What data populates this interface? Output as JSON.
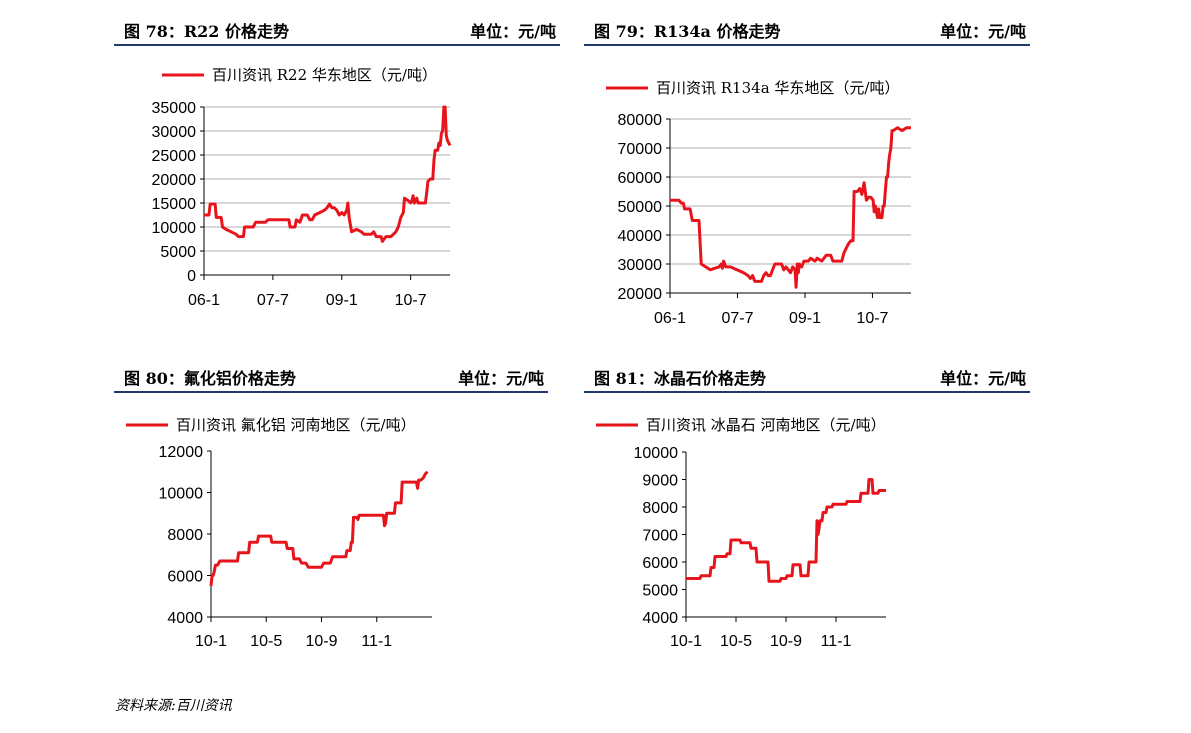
{
  "panels": [
    {
      "title": "图 78：R22 价格走势",
      "unit": "单位：元/吨",
      "chart_data": {
        "type": "line",
        "series": [
          {
            "name": "百川资讯 R22 华东地区（元/吨）",
            "color": "#e8141c"
          }
        ],
        "xlabel": "",
        "ylabel": "",
        "x_ticks": [
          "06-1",
          "07-7",
          "09-1",
          "10-7"
        ],
        "y_ticks": [
          0,
          5000,
          10000,
          15000,
          20000,
          25000,
          30000,
          35000
        ],
        "ylim": [
          0,
          35000
        ],
        "grid": "horizontal",
        "legend": "top",
        "points": [
          [
            0,
            12500
          ],
          [
            0.02,
            12500
          ],
          [
            0.025,
            14800
          ],
          [
            0.045,
            14800
          ],
          [
            0.05,
            12000
          ],
          [
            0.07,
            12000
          ],
          [
            0.075,
            10000
          ],
          [
            0.09,
            9500
          ],
          [
            0.11,
            9000
          ],
          [
            0.13,
            8500
          ],
          [
            0.14,
            8000
          ],
          [
            0.16,
            8000
          ],
          [
            0.165,
            10000
          ],
          [
            0.2,
            10000
          ],
          [
            0.21,
            11000
          ],
          [
            0.25,
            11000
          ],
          [
            0.26,
            11500
          ],
          [
            0.3,
            11500
          ],
          [
            0.32,
            11500
          ],
          [
            0.345,
            11500
          ],
          [
            0.35,
            10000
          ],
          [
            0.37,
            10000
          ],
          [
            0.375,
            11500
          ],
          [
            0.39,
            11000
          ],
          [
            0.4,
            12500
          ],
          [
            0.42,
            12500
          ],
          [
            0.43,
            11500
          ],
          [
            0.44,
            11500
          ],
          [
            0.45,
            12500
          ],
          [
            0.47,
            13000
          ],
          [
            0.49,
            13500
          ],
          [
            0.5,
            14000
          ],
          [
            0.51,
            14800
          ],
          [
            0.52,
            14000
          ],
          [
            0.53,
            14000
          ],
          [
            0.54,
            13500
          ],
          [
            0.55,
            12500
          ],
          [
            0.56,
            13000
          ],
          [
            0.57,
            12500
          ],
          [
            0.58,
            13500
          ],
          [
            0.585,
            15000
          ],
          [
            0.59,
            12000
          ],
          [
            0.6,
            9000
          ],
          [
            0.62,
            9500
          ],
          [
            0.64,
            9000
          ],
          [
            0.65,
            8500
          ],
          [
            0.68,
            8500
          ],
          [
            0.69,
            9000
          ],
          [
            0.7,
            8000
          ],
          [
            0.72,
            8000
          ],
          [
            0.725,
            7000
          ],
          [
            0.74,
            8000
          ],
          [
            0.76,
            8000
          ],
          [
            0.77,
            8500
          ],
          [
            0.78,
            9000
          ],
          [
            0.79,
            10000
          ],
          [
            0.8,
            12000
          ],
          [
            0.81,
            13000
          ],
          [
            0.815,
            16000
          ],
          [
            0.83,
            15500
          ],
          [
            0.84,
            15000
          ],
          [
            0.845,
            15500
          ],
          [
            0.85,
            16500
          ],
          [
            0.855,
            15000
          ],
          [
            0.86,
            15500
          ],
          [
            0.865,
            16000
          ],
          [
            0.87,
            15000
          ],
          [
            0.89,
            15000
          ],
          [
            0.9,
            15000
          ],
          [
            0.905,
            17000
          ],
          [
            0.91,
            19500
          ],
          [
            0.92,
            20000
          ],
          [
            0.93,
            20000
          ],
          [
            0.935,
            24000
          ],
          [
            0.94,
            26000
          ],
          [
            0.95,
            26000
          ],
          [
            0.955,
            27500
          ],
          [
            0.96,
            27000
          ],
          [
            0.965,
            29500
          ],
          [
            0.97,
            30000
          ],
          [
            0.975,
            35000
          ],
          [
            0.98,
            35000
          ],
          [
            0.985,
            29000
          ],
          [
            0.99,
            28000
          ],
          [
            0.995,
            27500
          ],
          [
            1.0,
            27000
          ]
        ]
      }
    },
    {
      "title": "图 79：R134a 价格走势",
      "unit": "单位：元/吨",
      "chart_data": {
        "type": "line",
        "series": [
          {
            "name": "百川资讯 R134a 华东地区（元/吨）",
            "color": "#e8141c"
          }
        ],
        "xlabel": "",
        "ylabel": "",
        "x_ticks": [
          "06-1",
          "07-7",
          "09-1",
          "10-7"
        ],
        "y_ticks": [
          20000,
          30000,
          40000,
          50000,
          60000,
          70000,
          80000
        ],
        "ylim": [
          20000,
          80000
        ],
        "grid": "horizontal",
        "legend": "top",
        "points": [
          [
            0,
            52000
          ],
          [
            0.04,
            52000
          ],
          [
            0.05,
            51000
          ],
          [
            0.06,
            51000
          ],
          [
            0.065,
            49000
          ],
          [
            0.09,
            49000
          ],
          [
            0.1,
            45000
          ],
          [
            0.13,
            45000
          ],
          [
            0.14,
            30000
          ],
          [
            0.16,
            29000
          ],
          [
            0.18,
            28000
          ],
          [
            0.2,
            28500
          ],
          [
            0.22,
            29000
          ],
          [
            0.23,
            30000
          ],
          [
            0.235,
            28500
          ],
          [
            0.24,
            31000
          ],
          [
            0.25,
            29000
          ],
          [
            0.27,
            29000
          ],
          [
            0.3,
            28000
          ],
          [
            0.33,
            27000
          ],
          [
            0.35,
            26000
          ],
          [
            0.36,
            25000
          ],
          [
            0.37,
            26000
          ],
          [
            0.38,
            24000
          ],
          [
            0.41,
            24000
          ],
          [
            0.42,
            26000
          ],
          [
            0.43,
            27000
          ],
          [
            0.44,
            26000
          ],
          [
            0.45,
            26000
          ],
          [
            0.46,
            28000
          ],
          [
            0.47,
            30000
          ],
          [
            0.5,
            30000
          ],
          [
            0.51,
            28000
          ],
          [
            0.52,
            29000
          ],
          [
            0.53,
            28000
          ],
          [
            0.54,
            27000
          ],
          [
            0.55,
            29000
          ],
          [
            0.56,
            28000
          ],
          [
            0.565,
            22000
          ],
          [
            0.57,
            30000
          ],
          [
            0.575,
            27000
          ],
          [
            0.58,
            30000
          ],
          [
            0.59,
            29000
          ],
          [
            0.6,
            31000
          ],
          [
            0.62,
            31000
          ],
          [
            0.63,
            32000
          ],
          [
            0.65,
            31000
          ],
          [
            0.66,
            32000
          ],
          [
            0.68,
            31000
          ],
          [
            0.7,
            33000
          ],
          [
            0.72,
            33000
          ],
          [
            0.73,
            31000
          ],
          [
            0.75,
            31000
          ],
          [
            0.76,
            31000
          ],
          [
            0.77,
            31000
          ],
          [
            0.78,
            34000
          ],
          [
            0.8,
            37000
          ],
          [
            0.81,
            38000
          ],
          [
            0.82,
            38000
          ],
          [
            0.825,
            55000
          ],
          [
            0.84,
            55000
          ],
          [
            0.85,
            56000
          ],
          [
            0.86,
            54000
          ],
          [
            0.87,
            58000
          ],
          [
            0.88,
            52000
          ],
          [
            0.89,
            53000
          ],
          [
            0.9,
            53000
          ],
          [
            0.91,
            52000
          ],
          [
            0.915,
            48000
          ],
          [
            0.92,
            50000
          ],
          [
            0.93,
            46000
          ],
          [
            0.935,
            49000
          ],
          [
            0.94,
            46000
          ],
          [
            0.95,
            46000
          ],
          [
            0.955,
            50000
          ],
          [
            0.96,
            50000
          ],
          [
            0.965,
            55000
          ],
          [
            0.97,
            60000
          ],
          [
            0.975,
            60000
          ],
          [
            0.98,
            65000
          ],
          [
            0.985,
            68000
          ],
          [
            0.99,
            70000
          ],
          [
            0.995,
            76000
          ],
          [
            1.0,
            76000
          ],
          [
            1.02,
            77000
          ],
          [
            1.04,
            76000
          ],
          [
            1.06,
            77000
          ],
          [
            1.08,
            77000
          ]
        ]
      }
    },
    {
      "title": "图 80：氟化铝价格走势",
      "unit": "单位：元/吨",
      "chart_data": {
        "type": "line",
        "series": [
          {
            "name": "百川资讯 氟化铝 河南地区（元/吨）",
            "color": "#e8141c"
          }
        ],
        "xlabel": "",
        "ylabel": "",
        "x_ticks": [
          "10-1",
          "10-5",
          "10-9",
          "11-1"
        ],
        "y_ticks": [
          4000,
          6000,
          8000,
          10000,
          12000
        ],
        "ylim": [
          4000,
          12000
        ],
        "grid": "none",
        "legend": "top",
        "points": [
          [
            0,
            5500
          ],
          [
            0.005,
            6000
          ],
          [
            0.01,
            6000
          ],
          [
            0.015,
            6200
          ],
          [
            0.02,
            6500
          ],
          [
            0.03,
            6500
          ],
          [
            0.04,
            6700
          ],
          [
            0.12,
            6700
          ],
          [
            0.125,
            7100
          ],
          [
            0.17,
            7100
          ],
          [
            0.175,
            7600
          ],
          [
            0.21,
            7600
          ],
          [
            0.215,
            7900
          ],
          [
            0.27,
            7900
          ],
          [
            0.275,
            7600
          ],
          [
            0.34,
            7600
          ],
          [
            0.345,
            7300
          ],
          [
            0.37,
            7300
          ],
          [
            0.375,
            6800
          ],
          [
            0.4,
            6800
          ],
          [
            0.41,
            6600
          ],
          [
            0.43,
            6600
          ],
          [
            0.44,
            6400
          ],
          [
            0.5,
            6400
          ],
          [
            0.51,
            6600
          ],
          [
            0.54,
            6600
          ],
          [
            0.55,
            6900
          ],
          [
            0.61,
            6900
          ],
          [
            0.615,
            7200
          ],
          [
            0.63,
            7200
          ],
          [
            0.635,
            7600
          ],
          [
            0.64,
            7600
          ],
          [
            0.645,
            8800
          ],
          [
            0.66,
            8800
          ],
          [
            0.665,
            8700
          ],
          [
            0.67,
            8900
          ],
          [
            0.78,
            8900
          ],
          [
            0.785,
            8400
          ],
          [
            0.79,
            8500
          ],
          [
            0.795,
            9000
          ],
          [
            0.83,
            9000
          ],
          [
            0.835,
            9500
          ],
          [
            0.86,
            9500
          ],
          [
            0.865,
            10500
          ],
          [
            0.93,
            10500
          ],
          [
            0.935,
            10200
          ],
          [
            0.94,
            10600
          ],
          [
            0.95,
            10600
          ],
          [
            0.96,
            10700
          ],
          [
            0.97,
            10900
          ],
          [
            0.98,
            11000
          ]
        ]
      }
    },
    {
      "title": "图 81：冰晶石价格走势",
      "unit": "单位：元/吨",
      "chart_data": {
        "type": "line",
        "series": [
          {
            "name": "百川资讯 冰晶石 河南地区（元/吨）",
            "color": "#e8141c"
          }
        ],
        "xlabel": "",
        "ylabel": "",
        "x_ticks": [
          "10-1",
          "10-5",
          "10-9",
          "11-1"
        ],
        "y_ticks": [
          4000,
          5000,
          6000,
          7000,
          8000,
          9000,
          10000
        ],
        "ylim": [
          4000,
          10000
        ],
        "grid": "none",
        "legend": "top",
        "points": [
          [
            0,
            5400
          ],
          [
            0.07,
            5400
          ],
          [
            0.075,
            5500
          ],
          [
            0.12,
            5500
          ],
          [
            0.125,
            5800
          ],
          [
            0.14,
            5800
          ],
          [
            0.145,
            6200
          ],
          [
            0.2,
            6200
          ],
          [
            0.205,
            6300
          ],
          [
            0.22,
            6300
          ],
          [
            0.225,
            6800
          ],
          [
            0.27,
            6800
          ],
          [
            0.275,
            6700
          ],
          [
            0.32,
            6700
          ],
          [
            0.325,
            6500
          ],
          [
            0.35,
            6500
          ],
          [
            0.355,
            6000
          ],
          [
            0.41,
            6000
          ],
          [
            0.415,
            5300
          ],
          [
            0.47,
            5300
          ],
          [
            0.475,
            5400
          ],
          [
            0.5,
            5400
          ],
          [
            0.505,
            5500
          ],
          [
            0.53,
            5500
          ],
          [
            0.535,
            5900
          ],
          [
            0.57,
            5900
          ],
          [
            0.575,
            5500
          ],
          [
            0.61,
            5500
          ],
          [
            0.615,
            6000
          ],
          [
            0.65,
            6000
          ],
          [
            0.655,
            7500
          ],
          [
            0.66,
            7000
          ],
          [
            0.665,
            7200
          ],
          [
            0.67,
            7500
          ],
          [
            0.68,
            7500
          ],
          [
            0.685,
            7800
          ],
          [
            0.7,
            7800
          ],
          [
            0.705,
            8000
          ],
          [
            0.73,
            8000
          ],
          [
            0.735,
            8100
          ],
          [
            0.8,
            8100
          ],
          [
            0.805,
            8200
          ],
          [
            0.87,
            8200
          ],
          [
            0.875,
            8500
          ],
          [
            0.91,
            8500
          ],
          [
            0.915,
            9000
          ],
          [
            0.93,
            9000
          ],
          [
            0.935,
            8500
          ],
          [
            0.96,
            8500
          ],
          [
            0.965,
            8600
          ],
          [
            1.0,
            8600
          ]
        ]
      }
    }
  ],
  "source": "资料来源:百川资讯"
}
